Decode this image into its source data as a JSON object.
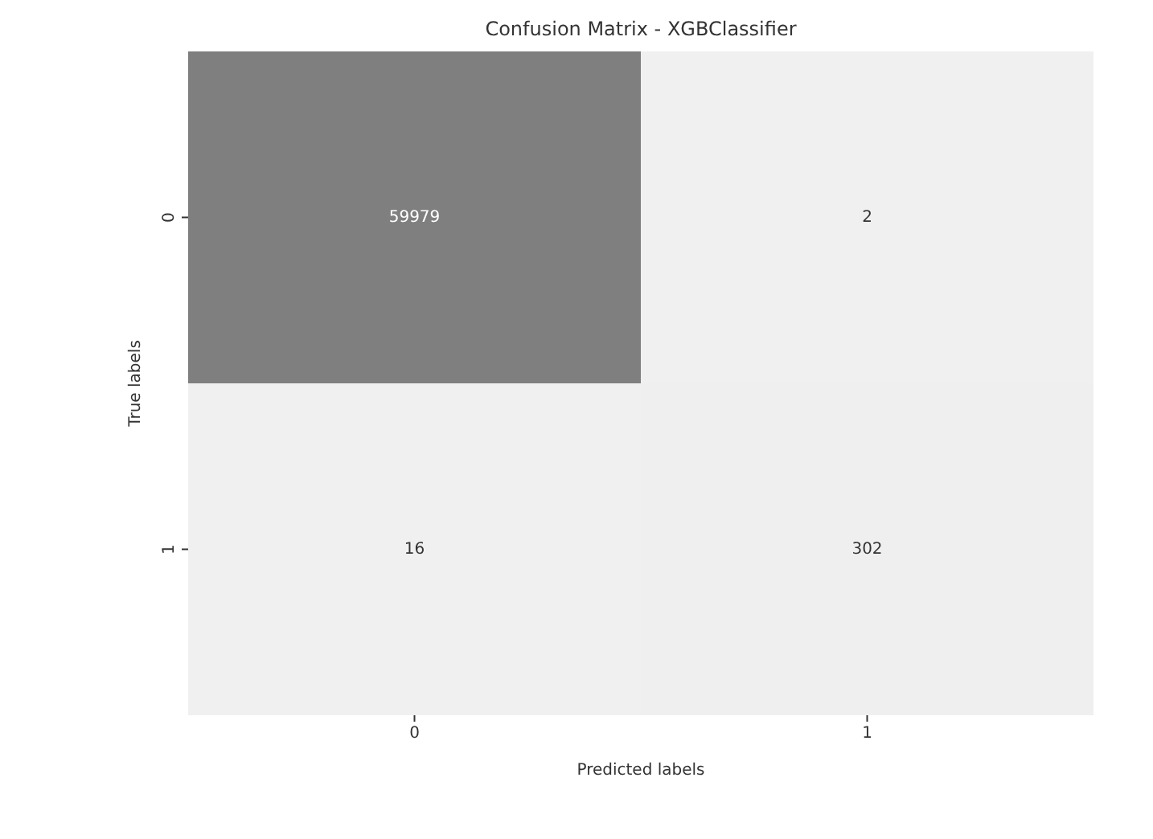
{
  "chart_data": {
    "type": "heatmap",
    "title": "Confusion Matrix - XGBClassifier",
    "xlabel": "Predicted labels",
    "ylabel": "True labels",
    "categories": [
      "0",
      "1"
    ],
    "y_categories": [
      "0",
      "1"
    ],
    "cells": [
      [
        59979,
        2
      ],
      [
        16,
        302
      ]
    ],
    "data_labels": true
  }
}
